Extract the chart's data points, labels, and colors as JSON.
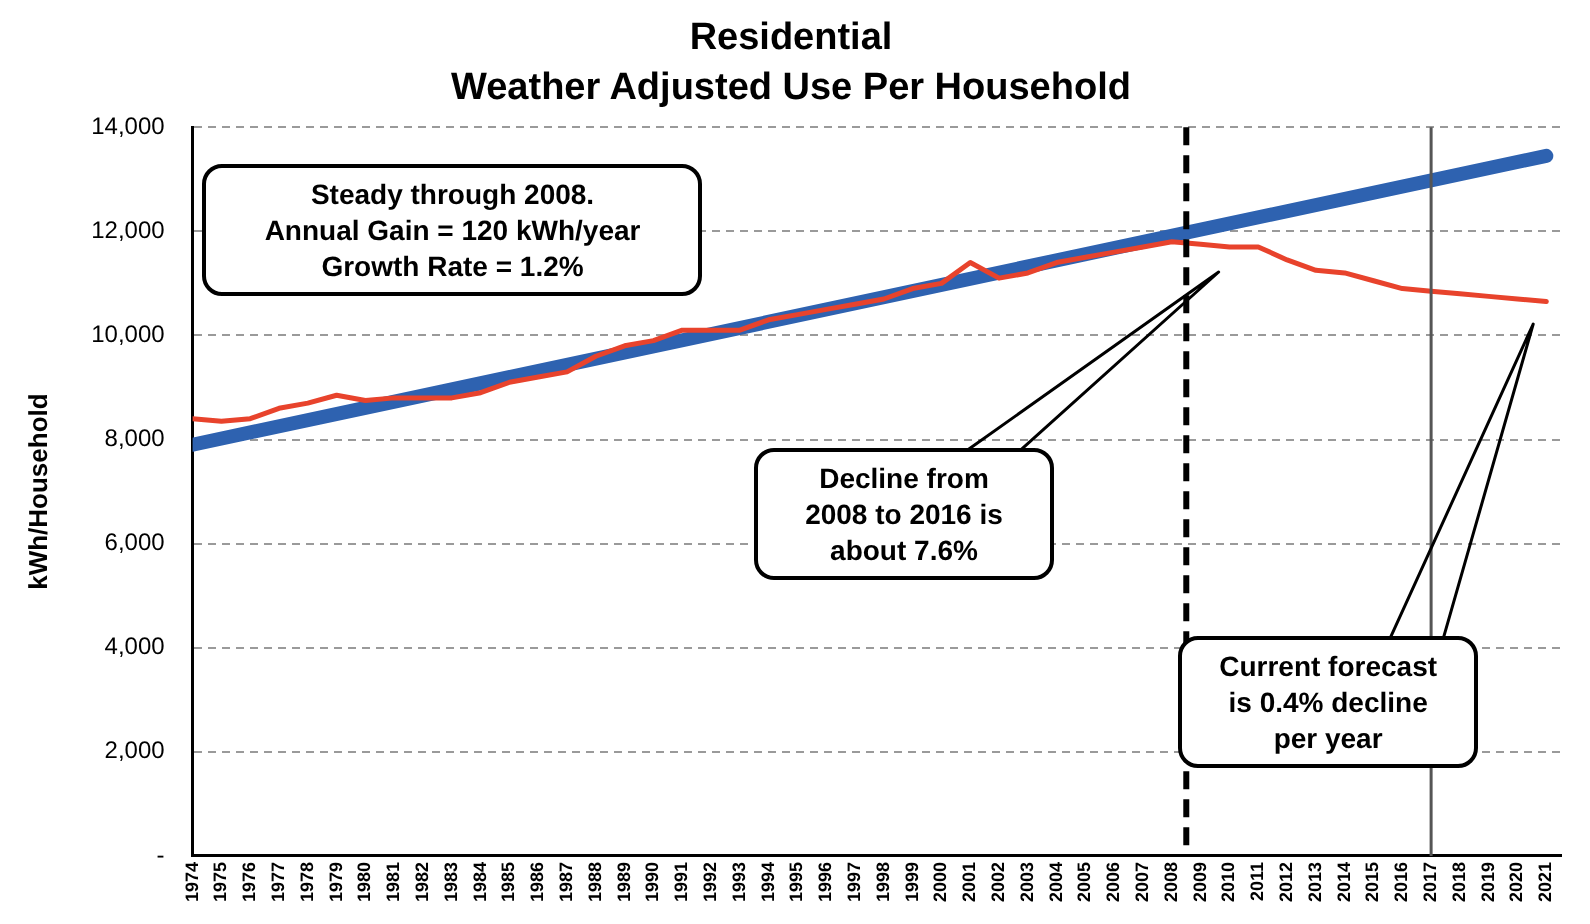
{
  "chart_data": {
    "type": "line",
    "title": "Residential",
    "subtitle": "Weather Adjusted Use Per Household",
    "ylabel": "kWh/Household",
    "x": [
      1974,
      1975,
      1976,
      1977,
      1978,
      1979,
      1980,
      1981,
      1982,
      1983,
      1984,
      1985,
      1986,
      1987,
      1988,
      1989,
      1990,
      1991,
      1992,
      1993,
      1994,
      1995,
      1996,
      1997,
      1998,
      1999,
      2000,
      2001,
      2002,
      2003,
      2004,
      2005,
      2006,
      2007,
      2008,
      2009,
      2010,
      2011,
      2012,
      2013,
      2014,
      2015,
      2016,
      2017,
      2018,
      2019,
      2020,
      2021
    ],
    "series": [
      {
        "color": "#e8432c",
        "values": [
          8400,
          8350,
          8400,
          8600,
          8700,
          8850,
          8750,
          8800,
          8800,
          8800,
          8900,
          9100,
          9200,
          9300,
          9600,
          9800,
          9900,
          10100,
          10100,
          10100,
          10300,
          10400,
          10500,
          10600,
          10700,
          10900,
          11000,
          11400,
          11100,
          11200,
          11400,
          11500,
          11600,
          11700,
          11800,
          11750,
          11700,
          11700,
          11450,
          11250,
          11200,
          11050,
          10900,
          10850,
          10800,
          10750,
          10700,
          10650
        ]
      },
      {
        "type": "line",
        "color": "#2e62b0",
        "x": [
          1974,
          2021
        ],
        "values": [
          7900,
          13450
        ]
      }
    ],
    "xlim": [
      1974,
      2021.5
    ],
    "xticks": [
      1974,
      1975,
      1976,
      1977,
      1978,
      1979,
      1980,
      1981,
      1982,
      1983,
      1984,
      1985,
      1986,
      1987,
      1988,
      1989,
      1990,
      1991,
      1992,
      1993,
      1994,
      1995,
      1996,
      1997,
      1998,
      1999,
      2000,
      2001,
      2002,
      2003,
      2004,
      2005,
      2006,
      2007,
      2008,
      2009,
      2010,
      2011,
      2012,
      2013,
      2014,
      2015,
      2016,
      2017,
      2018,
      2019,
      2020,
      2021
    ],
    "ylim": [
      0,
      14000
    ],
    "yticks": [
      {
        "value": 0,
        "label": "-"
      },
      {
        "value": 2000,
        "label": "2,000"
      },
      {
        "value": 4000,
        "label": "4,000"
      },
      {
        "value": 6000,
        "label": "6,000"
      },
      {
        "value": 8000,
        "label": "8,000"
      },
      {
        "value": 10000,
        "label": "10,000"
      },
      {
        "value": 12000,
        "label": "12,000"
      },
      {
        "value": 14000,
        "label": "14,000"
      }
    ],
    "ref_lines": [
      {
        "axis": "x",
        "value": 2008.5,
        "color": "#000000",
        "line_style": "dashed"
      },
      {
        "axis": "x",
        "value": 2017,
        "color": "#555555",
        "line_style": "solid"
      }
    ],
    "annotations": [
      "Steady through 2008.\nAnnual Gain = 120 kWh/year\nGrowth Rate = 1.2%",
      "Decline from\n2008 to 2016 is\nabout 7.6%",
      "Current forecast\nis 0.4% decline\nper year"
    ],
    "grid": "y",
    "legend": false,
    "marker": "none",
    "line_style": "solid"
  }
}
